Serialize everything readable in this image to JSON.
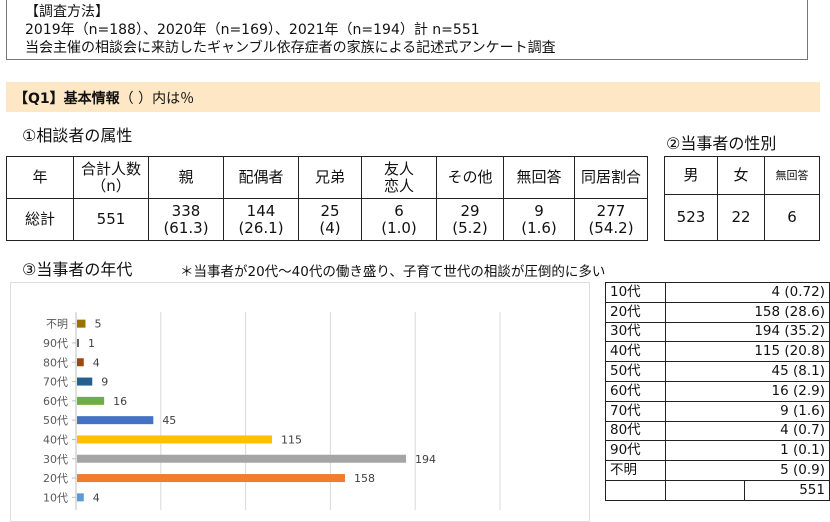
{
  "method": {
    "title": "【調査方法】",
    "line1": "2019年（n=188）、2020年（n=169）、2021年（n=194）計 n=551",
    "line2": "当会主催の相談会に来訪したギャンブル依存症者の家族による記述式アンケート調査"
  },
  "q1": {
    "label": "【Q1】基本情報",
    "note": "（ ）内は％"
  },
  "sec1": {
    "title": "①相談者の属性",
    "headers": [
      "年",
      "合計人数（n）",
      "親",
      "配偶者",
      "兄弟",
      "友人恋人",
      "その他",
      "無回答",
      "同居割合"
    ],
    "header_lines": {
      "n1": "合計人数",
      "n2": "（n）",
      "f1": "友人",
      "f2": "恋人"
    },
    "row": {
      "label": "総計",
      "total": "551",
      "cells": [
        {
          "v": "338",
          "p": "(61.3)"
        },
        {
          "v": "144",
          "p": "(26.1)"
        },
        {
          "v": "25",
          "p": "(4)"
        },
        {
          "v": "6",
          "p": "(1.0)"
        },
        {
          "v": "29",
          "p": "(5.2)"
        },
        {
          "v": "9",
          "p": "(1.6)"
        },
        {
          "v": "277",
          "p": "(54.2)"
        }
      ]
    }
  },
  "sec2": {
    "title": "②当事者の性別",
    "headers": [
      "男",
      "女",
      "無回答"
    ],
    "values": [
      "523",
      "22",
      "6"
    ]
  },
  "sec3": {
    "title": "③当事者の年代",
    "note": "＊当事者が20代～40代の働き盛り、子育て世代の相談が圧倒的に多い",
    "table": [
      {
        "age": "10代",
        "n": "4",
        "p": "(0.72)"
      },
      {
        "age": "20代",
        "n": "158",
        "p": "(28.6)"
      },
      {
        "age": "30代",
        "n": "194",
        "p": "(35.2)"
      },
      {
        "age": "40代",
        "n": "115",
        "p": "(20.8)"
      },
      {
        "age": "50代",
        "n": "45",
        "p": "(8.1)"
      },
      {
        "age": "60代",
        "n": "16",
        "p": "(2.9)"
      },
      {
        "age": "70代",
        "n": "9",
        "p": "(1.6)"
      },
      {
        "age": "80代",
        "n": "4",
        "p": "(0.7)"
      },
      {
        "age": "90代",
        "n": "1",
        "p": "(0.1)"
      },
      {
        "age": "不明",
        "n": "5",
        "p": "(0.9)"
      }
    ],
    "total": "551"
  },
  "chart_data": {
    "type": "bar",
    "orientation": "horizontal",
    "categories": [
      "10代",
      "20代",
      "30代",
      "40代",
      "50代",
      "60代",
      "70代",
      "80代",
      "90代",
      "不明"
    ],
    "values": [
      4,
      158,
      194,
      115,
      45,
      16,
      9,
      4,
      1,
      5
    ],
    "colors": [
      "#5b9bd5",
      "#ed7d31",
      "#a5a5a5",
      "#ffc000",
      "#4472c4",
      "#70ad47",
      "#255e91",
      "#9e480e",
      "#636363",
      "#997300"
    ],
    "xlim": [
      0,
      250
    ],
    "grid": true
  }
}
